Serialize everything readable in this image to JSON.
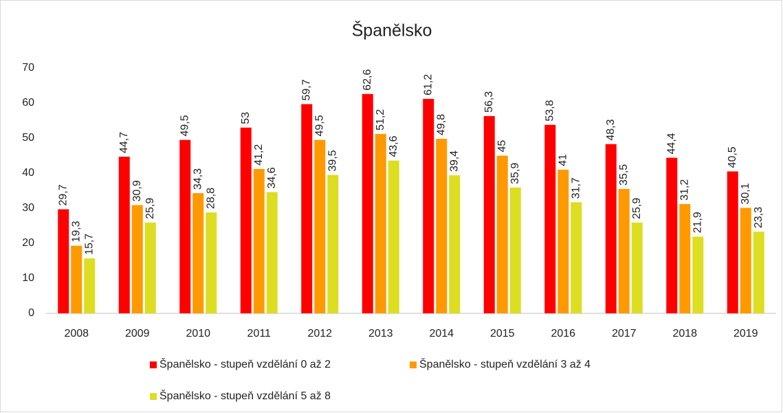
{
  "chart_data": {
    "type": "bar",
    "title": "Španělsko",
    "categories": [
      "2008",
      "2009",
      "2010",
      "2011",
      "2012",
      "2013",
      "2014",
      "2015",
      "2016",
      "2017",
      "2018",
      "2019"
    ],
    "series": [
      {
        "name": "Španělsko - stupeň vzdělání 0 až 2",
        "color": "#ff0000",
        "values": [
          29.7,
          44.7,
          49.5,
          53,
          59.7,
          62.6,
          61.2,
          56.3,
          53.8,
          48.3,
          44.4,
          40.5
        ],
        "value_labels": [
          "29,7",
          "44,7",
          "49,5",
          "53",
          "59,7",
          "62,6",
          "61,2",
          "56,3",
          "53,8",
          "48,3",
          "44,4",
          "40,5"
        ]
      },
      {
        "name": "Španělsko - stupeň vzdělání 3 až 4",
        "color": "#ff9900",
        "values": [
          19.3,
          30.9,
          34.3,
          41.2,
          49.5,
          51.2,
          49.8,
          45,
          41,
          35.5,
          31.2,
          30.1
        ],
        "value_labels": [
          "19,3",
          "30,9",
          "34,3",
          "41,2",
          "49,5",
          "51,2",
          "49,8",
          "45",
          "41",
          "35,5",
          "31,2",
          "30,1"
        ]
      },
      {
        "name": "Španělsko - stupeň vzdělání 5 až 8",
        "color": "#dddd22",
        "values": [
          15.7,
          25.9,
          28.8,
          34.6,
          39.5,
          43.6,
          39.4,
          35.9,
          31.7,
          25.9,
          21.9,
          23.3
        ],
        "value_labels": [
          "15,7",
          "25,9",
          "28,8",
          "34,6",
          "39,5",
          "43,6",
          "39,4",
          "35,9",
          "31,7",
          "25,9",
          "21,9",
          "23,3"
        ]
      }
    ],
    "ylim": [
      0,
      70
    ],
    "yticks": [
      0,
      10,
      20,
      30,
      40,
      50,
      60,
      70
    ],
    "grid": false,
    "legend": "bottom"
  }
}
